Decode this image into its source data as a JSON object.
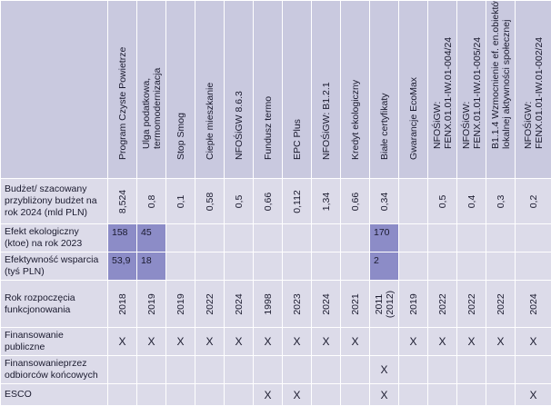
{
  "programs": [
    [
      "Program Czyste Powietrze"
    ],
    [
      "Ulga podatkowa,",
      "termomodernizacja"
    ],
    [
      "Stop Smog"
    ],
    [
      "Ciepłe mieszkanie"
    ],
    [
      "NFOŚiGW 8.6.3"
    ],
    [
      "Fundusz termo"
    ],
    [
      "EPC Plus"
    ],
    [
      "NFOŚiGW: B1.2.1"
    ],
    [
      "Kredyt ekologiczny"
    ],
    [
      "Białe certyfikaty"
    ],
    [
      "Gwarancje EcoMax"
    ],
    [
      "NFOŚiGW:",
      "FENX.01.01-IW.01-004/24"
    ],
    [
      "NFOŚiGW:",
      "FENX.01.01-IW.01-005/24"
    ],
    [
      "B1.1.4 Wzmocnienie ef. en.obiektów",
      "lokalnej aktywności społecznej"
    ],
    [
      "NFOŚiGW:",
      "FENX.01.01-IW.01-002/24"
    ]
  ],
  "rows": {
    "budget": {
      "label": "Budżet/ szacowany przybliżony budżet na rok 2024 (mld PLN)",
      "values": [
        "8,524",
        "0,8",
        "0,1",
        "0,58",
        "0,5",
        "0,66",
        "0,112",
        "1,34",
        "0,66",
        "0,34",
        "",
        "0,5",
        "0,4",
        "0,3",
        "0,2"
      ]
    },
    "effect": {
      "label": "Efekt ekologiczny (ktoe) na rok 2023",
      "values": [
        "158",
        "45",
        "",
        "",
        "",
        "",
        "",
        "",
        "",
        "170",
        "",
        "",
        "",
        "",
        ""
      ]
    },
    "efficiency": {
      "label": "Efektywność wsparcia (tyś PLN)",
      "values": [
        "53,9",
        "18",
        "",
        "",
        "",
        "",
        "",
        "",
        "",
        "2",
        "",
        "",
        "",
        "",
        ""
      ]
    },
    "start_year": {
      "label": "Rok rozpoczęcia funkcjonowania",
      "values": [
        [
          "2018"
        ],
        [
          "2019"
        ],
        [
          "2019"
        ],
        [
          "2022"
        ],
        [
          "2024"
        ],
        [
          "1998"
        ],
        [
          "2023"
        ],
        [
          "2024"
        ],
        [
          "2021"
        ],
        [
          "2011",
          "(2012)"
        ],
        [
          "2019"
        ],
        [
          "2022"
        ],
        [
          "2022"
        ],
        [
          "2022"
        ],
        [
          "2024"
        ]
      ]
    },
    "public": {
      "label": "Finansowanie publiczne",
      "values": [
        "X",
        "X",
        "X",
        "X",
        "X",
        "X",
        "X",
        "X",
        "X",
        "",
        "X",
        "X",
        "X",
        "X",
        "X"
      ]
    },
    "recipients": {
      "label": "Finansowanieprzez odbiorców końcowych",
      "values": [
        "",
        "",
        "",
        "",
        "",
        "",
        "",
        "",
        "",
        "X",
        "",
        "",
        "",
        "",
        ""
      ]
    },
    "esco": {
      "label": "ESCO",
      "values": [
        "",
        "",
        "",
        "",
        "",
        "X",
        "X",
        "",
        "",
        "X",
        "",
        "",
        "",
        "",
        "X"
      ]
    }
  },
  "colors": {
    "header_bg": "#c9c9df",
    "cell_bg": "#dcdbe9",
    "highlight_bg": "#8c8cc7",
    "text": "#1a1a2e"
  }
}
